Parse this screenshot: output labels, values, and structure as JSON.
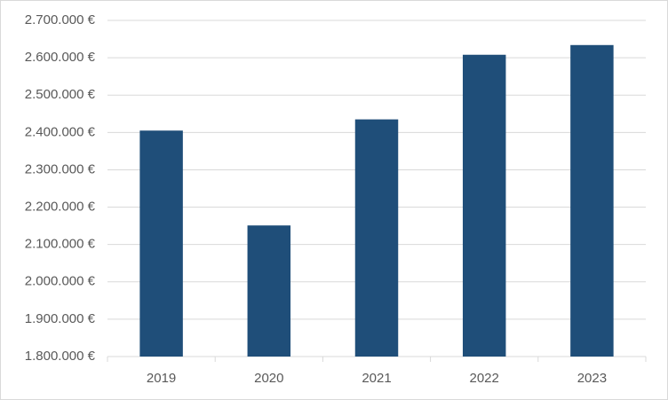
{
  "chart_data": {
    "type": "bar",
    "categories": [
      "2019",
      "2020",
      "2021",
      "2022",
      "2023"
    ],
    "values": [
      2405000,
      2151000,
      2435000,
      2608000,
      2634000
    ],
    "color": "#1f4e79",
    "ylim": [
      1800000,
      2700000
    ],
    "yticks": [
      {
        "value": 1800000,
        "label": "1.800.000 €"
      },
      {
        "value": 1900000,
        "label": "1.900.000 €"
      },
      {
        "value": 2000000,
        "label": "2.000.000 €"
      },
      {
        "value": 2100000,
        "label": "2.100.000 €"
      },
      {
        "value": 2200000,
        "label": "2.200.000 €"
      },
      {
        "value": 2300000,
        "label": "2.300.000 €"
      },
      {
        "value": 2400000,
        "label": "2.400.000 €"
      },
      {
        "value": 2500000,
        "label": "2.500.000 €"
      },
      {
        "value": 2600000,
        "label": "2.600.000 €"
      },
      {
        "value": 2700000,
        "label": "2.700.000 €"
      }
    ],
    "grid": true
  }
}
